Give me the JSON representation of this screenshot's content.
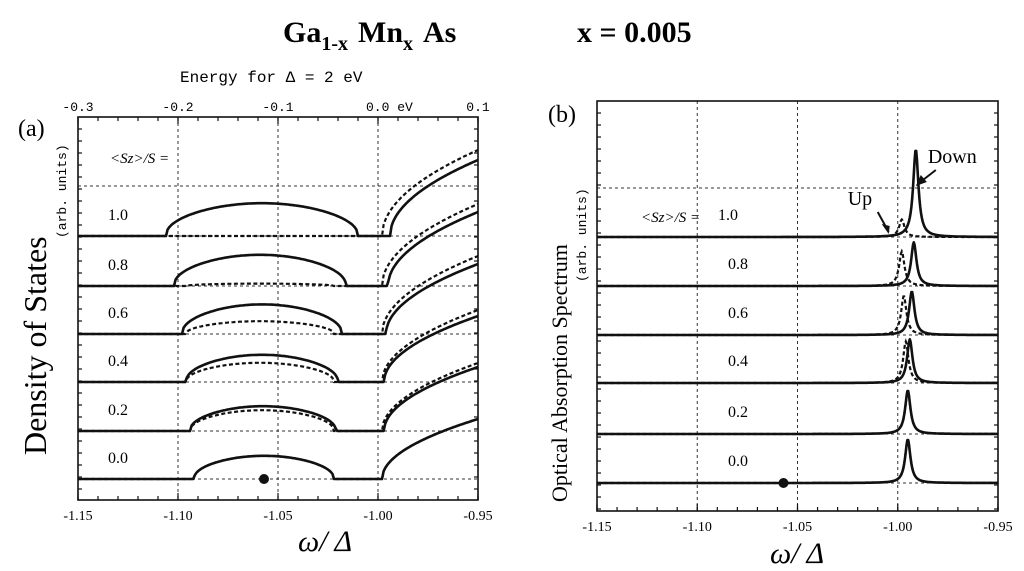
{
  "title": {
    "compound_main1": "Ga",
    "compound_sub1": "1-x",
    "compound_main2": "Mn",
    "compound_sub2": "x",
    "compound_main3": "As",
    "x_value": "x = 0.005"
  },
  "chart_data": [
    {
      "type": "line",
      "panel_label": "(a)",
      "ylabel": "Density of States",
      "ylabel_units": "(arb. units)",
      "xlabel": "ω/ Δ",
      "xlim": [
        -1.15,
        -0.95
      ],
      "x_ticks": [
        -1.15,
        -1.1,
        -1.05,
        -1.0,
        -0.95
      ],
      "x_tick_labels": [
        "-1.15",
        "-1.10",
        "-1.05",
        "-1.00",
        "-0.95"
      ],
      "top_axis_title": "Energy for  Δ = 2 eV",
      "top_ticks": [
        -0.3,
        -0.2,
        -0.1,
        0.0,
        0.1
      ],
      "top_tick_labels": [
        "-0.3",
        "-0.2",
        "-0.1",
        "0.0 eV",
        "0.1"
      ],
      "series_header": "<Sz>/S  =",
      "dot_x": -1.057,
      "series": [
        {
          "name": "1.0",
          "up": {
            "band": [
              -1.106,
              -1.01
            ],
            "height": 0.82,
            "edge": -0.994,
            "tail": 1.9
          },
          "down": {
            "band": null,
            "edge": -0.998,
            "tail": 2.15
          }
        },
        {
          "name": "0.8",
          "up": {
            "band": [
              -1.102,
              -1.016
            ],
            "height": 0.78,
            "edge": -0.995,
            "tail": 1.85
          },
          "down": {
            "band": [
              -1.096,
              -1.022
            ],
            "height": 0.06,
            "edge": -0.998,
            "tail": 2.05
          }
        },
        {
          "name": "0.6",
          "up": {
            "band": [
              -1.098,
              -1.018
            ],
            "height": 0.74,
            "edge": -0.996,
            "tail": 1.75
          },
          "down": {
            "band": [
              -1.096,
              -1.022
            ],
            "height": 0.32,
            "edge": -0.998,
            "tail": 1.95
          }
        },
        {
          "name": "0.4",
          "up": {
            "band": [
              -1.096,
              -1.02
            ],
            "height": 0.68,
            "edge": -0.997,
            "tail": 1.65
          },
          "down": {
            "band": [
              -1.096,
              -1.022
            ],
            "height": 0.48,
            "edge": -0.998,
            "tail": 1.8
          }
        },
        {
          "name": "0.2",
          "up": {
            "band": [
              -1.094,
              -1.021
            ],
            "height": 0.62,
            "edge": -0.997,
            "tail": 1.6
          },
          "down": {
            "band": [
              -1.094,
              -1.022
            ],
            "height": 0.52,
            "edge": -0.998,
            "tail": 1.7
          }
        },
        {
          "name": "0.0",
          "up": {
            "band": [
              -1.092,
              -1.022
            ],
            "height": 0.58,
            "edge": -0.998,
            "tail": 1.5
          },
          "down": {
            "band": [
              -1.092,
              -1.022
            ],
            "height": 0.58,
            "edge": -0.998,
            "tail": 1.5
          }
        }
      ]
    },
    {
      "type": "line",
      "panel_label": "(b)",
      "ylabel": "Optical Absorption Spectrum",
      "ylabel_units": "(arb. units)",
      "xlabel": "ω/ Δ",
      "xlim": [
        -1.15,
        -0.95
      ],
      "x_ticks": [
        -1.15,
        -1.1,
        -1.05,
        -1.0,
        -0.95
      ],
      "x_tick_labels": [
        "-1.15",
        "-1.10",
        "-1.05",
        "-1.00",
        "-0.95"
      ],
      "series_header": "<Sz>/S  =",
      "dot_x": -1.057,
      "annotations": [
        {
          "text": "Up",
          "x": -1.006,
          "y_frac": 0.6
        },
        {
          "text": "Down",
          "x": -0.984,
          "y_frac": 0.85
        }
      ],
      "series": [
        {
          "name": "1.0",
          "up": {
            "peak": -0.998,
            "height": 0.38
          },
          "down": {
            "peak": -0.991,
            "height": 0.95
          }
        },
        {
          "name": "0.8",
          "up": {
            "peak": -0.998,
            "height": 0.75
          },
          "down": {
            "peak": -0.992,
            "height": 0.95
          }
        },
        {
          "name": "0.6",
          "up": {
            "peak": -0.997,
            "height": 0.85
          },
          "down": {
            "peak": -0.993,
            "height": 0.95
          }
        },
        {
          "name": "0.4",
          "up": {
            "peak": -0.996,
            "height": 0.9
          },
          "down": {
            "peak": -0.994,
            "height": 0.95
          }
        },
        {
          "name": "0.2",
          "up": {
            "peak": -0.995,
            "height": 0.92
          },
          "down": {
            "peak": -0.995,
            "height": 0.95
          }
        },
        {
          "name": "0.0",
          "up": {
            "peak": -0.995,
            "height": 0.95
          },
          "down": {
            "peak": -0.995,
            "height": 0.95
          }
        }
      ]
    }
  ]
}
